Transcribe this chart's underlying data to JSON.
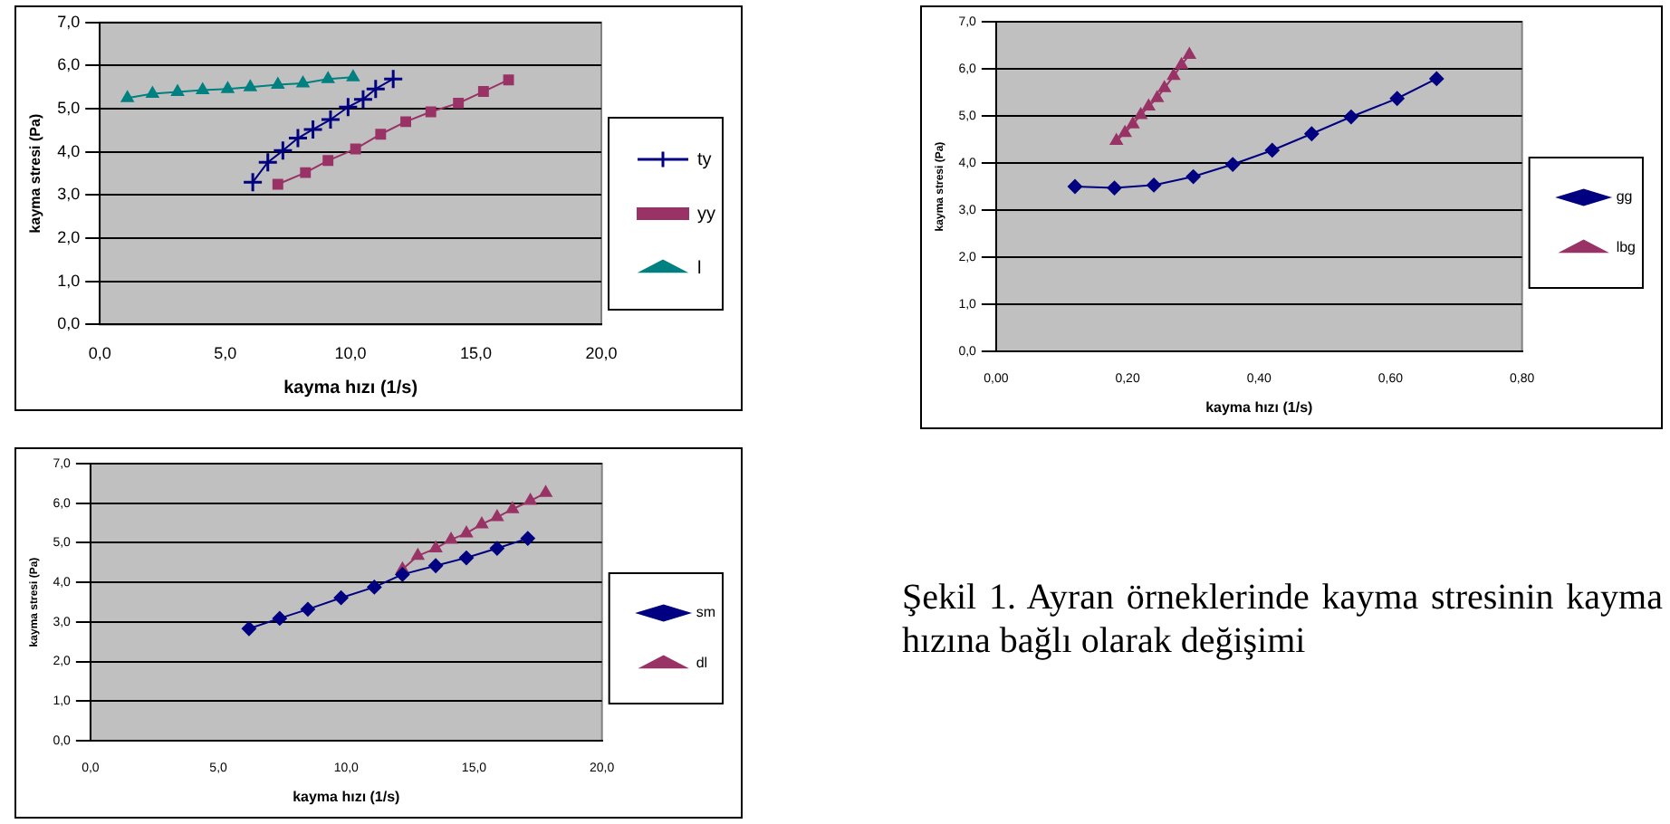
{
  "chart_data": [
    {
      "type": "line",
      "xlabel": "kayma hızı (1/s)",
      "ylabel": "kayma stresi (Pa)",
      "xlim": [
        0,
        20
      ],
      "ylim": [
        0,
        7
      ],
      "xticks": [
        {
          "value": 0,
          "label": "0,0"
        },
        {
          "value": 5,
          "label": "5,0"
        },
        {
          "value": 10,
          "label": "10,0"
        },
        {
          "value": 15,
          "label": "15,0"
        },
        {
          "value": 20,
          "label": "20,0"
        }
      ],
      "yticks": [
        {
          "value": 0,
          "label": "0,0"
        },
        {
          "value": 1,
          "label": "1,0"
        },
        {
          "value": 2,
          "label": "2,0"
        },
        {
          "value": 3,
          "label": "3,0"
        },
        {
          "value": 4,
          "label": "4,0"
        },
        {
          "value": 5,
          "label": "5,0"
        },
        {
          "value": 6,
          "label": "6,0"
        },
        {
          "value": 7,
          "label": "7,0"
        }
      ],
      "grid": "y",
      "legend": "right",
      "series": [
        {
          "name": "ty",
          "color": "#000080",
          "marker": "cross",
          "x": [
            6.1,
            6.7,
            7.3,
            7.9,
            8.5,
            9.2,
            9.9,
            10.5,
            11.0,
            11.7
          ],
          "values": [
            3.3,
            3.76,
            4.03,
            4.32,
            4.52,
            4.75,
            5.04,
            5.22,
            5.46,
            5.69
          ]
        },
        {
          "name": "yy",
          "color": "#993366",
          "marker": "square",
          "x": [
            7.1,
            8.2,
            9.1,
            10.2,
            11.2,
            12.2,
            13.2,
            14.3,
            15.3,
            16.3
          ],
          "values": [
            3.25,
            3.52,
            3.8,
            4.07,
            4.41,
            4.7,
            4.93,
            5.13,
            5.4,
            5.67
          ]
        },
        {
          "name": "l",
          "color": "#008080",
          "marker": "triangle",
          "x": [
            1.1,
            2.1,
            3.1,
            4.1,
            5.1,
            6.0,
            7.1,
            8.1,
            9.1,
            10.1
          ],
          "values": [
            5.25,
            5.35,
            5.39,
            5.43,
            5.46,
            5.5,
            5.56,
            5.59,
            5.69,
            5.73
          ]
        }
      ]
    },
    {
      "type": "line",
      "xlabel": "kayma hızı (1/s)",
      "ylabel": "kayma stresi (Pa)",
      "xlim": [
        0,
        0.8
      ],
      "ylim": [
        0,
        7
      ],
      "xticks": [
        {
          "value": 0,
          "label": "0,00"
        },
        {
          "value": 0.2,
          "label": "0,20"
        },
        {
          "value": 0.4,
          "label": "0,40"
        },
        {
          "value": 0.6,
          "label": "0,60"
        },
        {
          "value": 0.8,
          "label": "0,80"
        }
      ],
      "yticks": [
        {
          "value": 0,
          "label": "0,0"
        },
        {
          "value": 1,
          "label": "1,0"
        },
        {
          "value": 2,
          "label": "2,0"
        },
        {
          "value": 3,
          "label": "3,0"
        },
        {
          "value": 4,
          "label": "4,0"
        },
        {
          "value": 5,
          "label": "5,0"
        },
        {
          "value": 6,
          "label": "6,0"
        },
        {
          "value": 7,
          "label": "7,0"
        }
      ],
      "grid": "y",
      "legend": "right",
      "series": [
        {
          "name": "gg",
          "color": "#000080",
          "marker": "diamond",
          "x": [
            0.12,
            0.18,
            0.24,
            0.3,
            0.36,
            0.42,
            0.48,
            0.54,
            0.61,
            0.67
          ],
          "values": [
            3.5,
            3.47,
            3.53,
            3.71,
            3.97,
            4.27,
            4.62,
            4.98,
            5.37,
            5.79
          ]
        },
        {
          "name": "lbg",
          "color": "#993366",
          "marker": "triangle",
          "x": [
            0.183,
            0.196,
            0.208,
            0.22,
            0.232,
            0.245,
            0.256,
            0.27,
            0.282,
            0.294
          ],
          "values": [
            4.47,
            4.64,
            4.82,
            5.02,
            5.2,
            5.38,
            5.59,
            5.85,
            6.08,
            6.3
          ]
        }
      ]
    },
    {
      "type": "line",
      "xlabel": "kayma hızı (1/s)",
      "ylabel": "kayma stresi (Pa)",
      "xlim": [
        0,
        20
      ],
      "ylim": [
        0,
        7
      ],
      "xticks": [
        {
          "value": 0,
          "label": "0,0"
        },
        {
          "value": 5,
          "label": "5,0"
        },
        {
          "value": 10,
          "label": "10,0"
        },
        {
          "value": 15,
          "label": "15,0"
        },
        {
          "value": 20,
          "label": "20,0"
        }
      ],
      "yticks": [
        {
          "value": 0,
          "label": "0,0"
        },
        {
          "value": 1,
          "label": "1,0"
        },
        {
          "value": 2,
          "label": "2,0"
        },
        {
          "value": 3,
          "label": "3,0"
        },
        {
          "value": 4,
          "label": "4,0"
        },
        {
          "value": 5,
          "label": "5,0"
        },
        {
          "value": 6,
          "label": "6,0"
        },
        {
          "value": 7,
          "label": "7,0"
        }
      ],
      "grid": "y",
      "legend": "right",
      "series": [
        {
          "name": "sm",
          "color": "#000080",
          "marker": "diamond",
          "x": [
            6.2,
            7.4,
            8.5,
            9.8,
            11.1,
            12.2,
            13.5,
            14.7,
            15.9,
            17.1
          ],
          "values": [
            2.83,
            3.09,
            3.32,
            3.61,
            3.88,
            4.2,
            4.42,
            4.62,
            4.86,
            5.11
          ]
        },
        {
          "name": "dl",
          "color": "#993366",
          "marker": "triangle",
          "x": [
            12.2,
            12.8,
            13.5,
            14.1,
            14.7,
            15.3,
            15.9,
            16.5,
            17.2,
            17.8
          ],
          "values": [
            4.33,
            4.67,
            4.86,
            5.08,
            5.24,
            5.47,
            5.65,
            5.85,
            6.06,
            6.26
          ]
        }
      ]
    },
    {
      "type": "other",
      "annotations": [
        "Şekil 1. Ayran örneklerinde kayma stresinin kayma hızına bağlı olarak değişimi"
      ]
    }
  ]
}
